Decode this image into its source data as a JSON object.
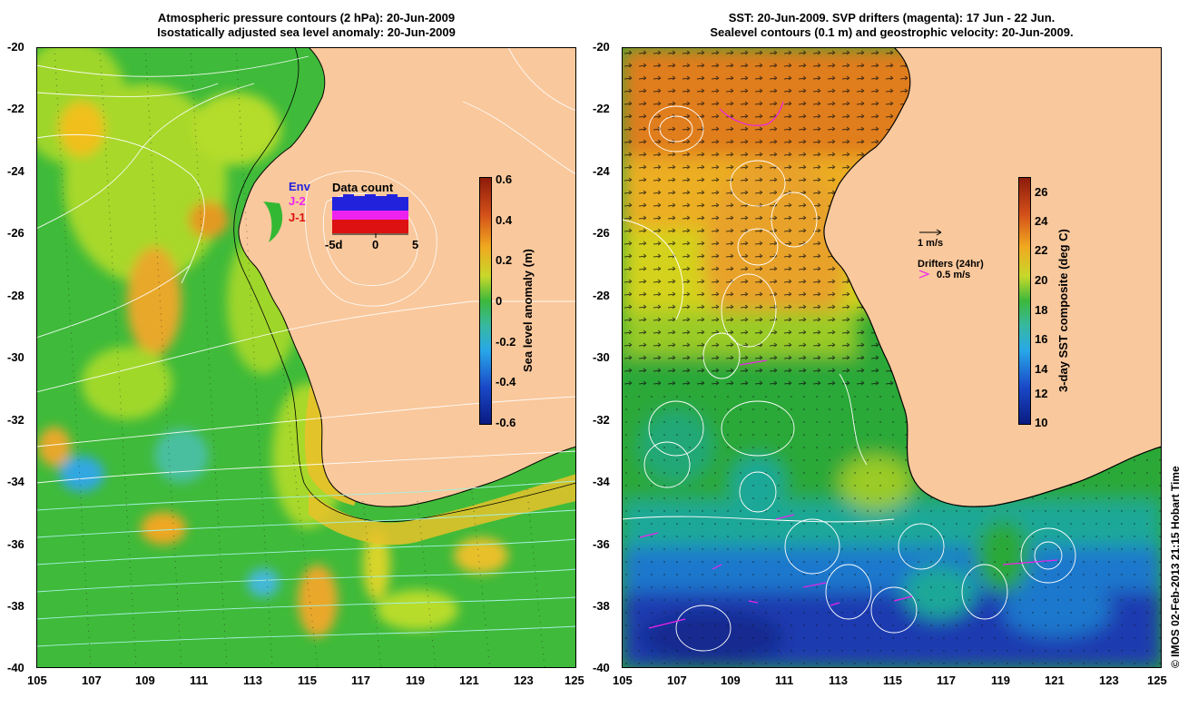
{
  "left_panel": {
    "title_line1": "Atmospheric pressure contours (2 hPa): 20-Jun-2009",
    "title_line2": "Isostatically adjusted sea level anomaly: 20-Jun-2009",
    "y_ticks": [
      "-20",
      "-22",
      "-24",
      "-26",
      "-28",
      "-30",
      "-32",
      "-34",
      "-36",
      "-38",
      "-40"
    ],
    "x_ticks": [
      "105",
      "107",
      "109",
      "111",
      "113",
      "115",
      "117",
      "119",
      "121",
      "123",
      "125"
    ],
    "colorbar": {
      "label": "Sea level anomaly (m)",
      "ticks": [
        "0.6",
        "0.4",
        "0.2",
        "0",
        "-0.2",
        "-0.4",
        "-0.6"
      ]
    },
    "inset": {
      "title": "Data count",
      "legend": [
        "Env",
        "J-2",
        "J-1"
      ],
      "legend_colors": [
        "#2222dd",
        "#ee22ee",
        "#dd1111"
      ],
      "x_ticks": [
        "-5d",
        "0",
        "5"
      ]
    },
    "colors": {
      "land": "#f9c89c",
      "ocean_base": "#33b833",
      "ocean_warm": "#a8d82a"
    }
  },
  "right_panel": {
    "title_line1": "SST: 20-Jun-2009. SVP drifters (magenta): 17 Jun - 22 Jun.",
    "title_line2": "Sealevel contours (0.1 m) and geostrophic velocity: 20-Jun-2009.",
    "y_ticks": [
      "-20",
      "-22",
      "-24",
      "-26",
      "-28",
      "-30",
      "-32",
      "-34",
      "-36",
      "-38",
      "-40"
    ],
    "x_ticks": [
      "105",
      "107",
      "109",
      "111",
      "113",
      "115",
      "117",
      "119",
      "121",
      "123",
      "125"
    ],
    "colorbar": {
      "label": "3-day SST composite (deg C)",
      "ticks": [
        "26",
        "24",
        "22",
        "20",
        "18",
        "16",
        "14",
        "12",
        "10"
      ]
    },
    "velocity_scale_label": "1 m/s",
    "drifters_label": "Drifters (24hr)",
    "drifters_scale_label": "0.5 m/s",
    "colors": {
      "land": "#f9c89c",
      "drifter": "#ee22ee"
    }
  },
  "credit": "© IMOS 02-Feb-2013 21:15 Hobart Time"
}
